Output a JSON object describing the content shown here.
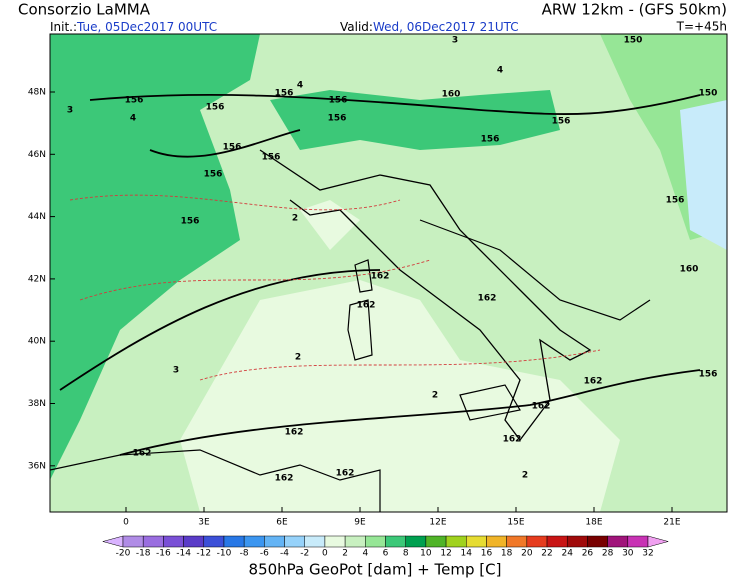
{
  "header": {
    "title": "Consorzio LaMMA",
    "model": "ARW 12km - (GFS 50km)",
    "init_label": "Init.:",
    "init": "Tue, 05Dec2017 00UTC",
    "valid_label": "Valid:",
    "valid": "Wed, 06Dec2017 21UTC",
    "lead": "T=+45h"
  },
  "map": {
    "lat_labels": [
      "48N",
      "46N",
      "44N",
      "42N",
      "40N",
      "38N",
      "36N"
    ],
    "lon_labels": [
      "0",
      "3E",
      "6E",
      "9E",
      "12E",
      "15E",
      "18E",
      "21E"
    ],
    "contour_labels": [
      "156",
      "156",
      "156",
      "156",
      "156",
      "156",
      "156",
      "156",
      "156",
      "160",
      "156",
      "156",
      "150",
      "150",
      "156",
      "160",
      "156",
      "162",
      "162",
      "162",
      "162",
      "162",
      "162",
      "162",
      "162",
      "162",
      "162",
      "4",
      "3",
      "4",
      "2",
      "3",
      "2",
      "2",
      "3",
      "4",
      "2"
    ]
  },
  "colorbar": {
    "labels": [
      "-20",
      "-18",
      "-16",
      "-14",
      "-12",
      "-10",
      "-8",
      "-6",
      "-4",
      "-2",
      "0",
      "2",
      "4",
      "6",
      "8",
      "10",
      "12",
      "14",
      "16",
      "18",
      "20",
      "22",
      "24",
      "26",
      "28",
      "30",
      "32"
    ],
    "colors": [
      "#d9b3ff",
      "#b08ce6",
      "#9a6ee0",
      "#7a50d6",
      "#5a3cc8",
      "#3c50d8",
      "#2878e6",
      "#3c96f0",
      "#64b4f5",
      "#96d2fa",
      "#c8ebfa",
      "#e8fae0",
      "#c8f0c0",
      "#96e696",
      "#3cc878",
      "#00a050",
      "#50b428",
      "#a0d21e",
      "#e6dc32",
      "#f0b428",
      "#f07828",
      "#e63c1e",
      "#c81414",
      "#a00a0a",
      "#780000",
      "#a0147a",
      "#c832b4",
      "#f0a0f0"
    ]
  },
  "caption": "850hPa GeoPot [dam] + Temp [C]"
}
